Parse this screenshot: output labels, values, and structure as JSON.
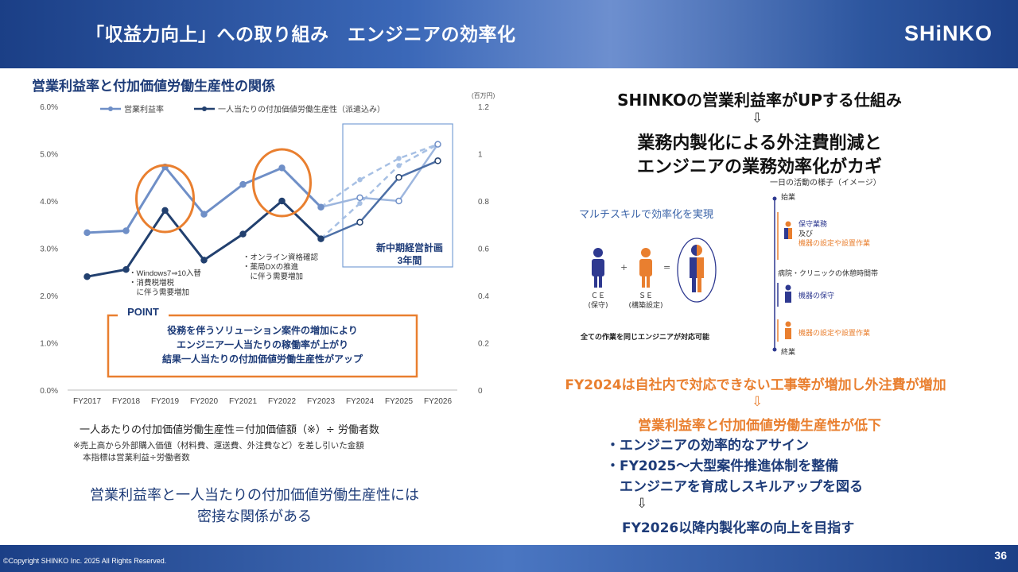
{
  "header": {
    "title": "「収益力向上」への取り組み　エンジニアの効率化",
    "logo": "SHiNKO"
  },
  "footer": {
    "copyright": "©Copyright SHINKO Inc. 2025 All Rights Reserved.",
    "page": "36"
  },
  "left": {
    "chart_heading": "営業利益率と付加価値労働生産性の関係",
    "formula": "一人あたりの付加価値労働生産性＝付加価値額（※）÷ 労働者数",
    "note_1": "※売上高から外部購入価値（材料費、運送費、外注費など）を差し引いた金額",
    "note_2": "本指標は営業利益÷労働者数",
    "summary_1": "営業利益率と一人当たりの付加価値労働生産性には",
    "summary_2": "密接な関係がある"
  },
  "chart_data": {
    "type": "line",
    "categories": [
      "FY2017",
      "FY2018",
      "FY2019",
      "FY2020",
      "FY2021",
      "FY2022",
      "FY2023",
      "FY2024",
      "FY2025",
      "FY2026"
    ],
    "y_left": {
      "ticks": [
        "0.0%",
        "1.0%",
        "2.0%",
        "3.0%",
        "4.0%",
        "5.0%",
        "6.0%"
      ],
      "range": [
        0,
        6
      ]
    },
    "y_right": {
      "ticks": [
        "0",
        "0.2",
        "0.4",
        "0.6",
        "0.8",
        "1",
        "1.2"
      ],
      "range": [
        0,
        1.2
      ],
      "unit": "(百万円)"
    },
    "series": [
      {
        "name": "営業利益率",
        "axis": "left",
        "color": "#6f8fc7",
        "values": [
          3.33,
          3.37,
          4.72,
          3.72,
          4.35,
          4.7,
          3.87,
          4.07,
          4.0,
          5.2
        ]
      },
      {
        "name": "一人当たりの付加価値労働生産性（派遣込み）",
        "axis": "right",
        "color": "#22406f",
        "values": [
          0.48,
          0.51,
          0.76,
          0.55,
          0.66,
          0.8,
          0.64,
          0.71,
          0.9,
          0.97
        ]
      }
    ],
    "plan_branches": [
      {
        "series": 0,
        "values": [
          null,
          null,
          null,
          null,
          null,
          null,
          3.87,
          4.45,
          4.9,
          5.2
        ]
      },
      {
        "series": 1,
        "values": [
          null,
          null,
          null,
          null,
          null,
          null,
          0.64,
          0.79,
          0.95,
          1.04
        ]
      }
    ],
    "annotations": {
      "win7": [
        "・Windows7⇒10入替",
        "・消費税増税",
        "　に伴う需要増加"
      ],
      "online": [
        "・オンライン資格確認",
        "・薬局DXの推進",
        "　に伴う需要増加"
      ],
      "plan_1": "新中期経営計画",
      "plan_2": "3年間",
      "point_label": "POINT",
      "point_lines": [
        "役務を伴うソリューション案件の増加により",
        "エンジニア一人当たりの稼働率が上がり",
        "結果一人当たりの付加価値労働生産性がアップ"
      ]
    }
  },
  "right": {
    "mechanism_title": "SHINKOの営業利益率がUPする仕組み",
    "arrow": "⇩",
    "key_1": "業務内製化による外注費削減と",
    "key_2": "エンジニアの業務効率化がカギ",
    "diagram": {
      "timeline_title": "一日の活動の様子（イメージ）",
      "multi_skill": "マルチスキルで効率化を実現",
      "ce": "ＣＥ",
      "ce_sub": "(保守)",
      "se": "ＳＥ",
      "se_sub": "(構築設定)",
      "plus": "+",
      "equals": "=",
      "all_work": "全ての作業を同じエンジニアが対応可能",
      "start": "始業",
      "maint_work": "保守業務",
      "and": "及び",
      "setup_work": "機器の設定や設置作業",
      "break": "病院・クリニックの休憩時間帯",
      "device_maint": "機器の保守",
      "device_setup": "機器の設定や設置作業",
      "end": "終業"
    },
    "issue": "FY2024は自社内で対応できない工事等が増加し外注費が増加",
    "decline": "営業利益率と付加価値労働生産性が低下",
    "bullet_1": "・エンジニアの効率的なアサイン",
    "bullet_2": "・FY2025～大型案件推進体制を整備",
    "bullet_3": "　エンジニアを育成しスキルアップを図る",
    "goal": "FY2026以降内製化率の向上を目指す"
  }
}
